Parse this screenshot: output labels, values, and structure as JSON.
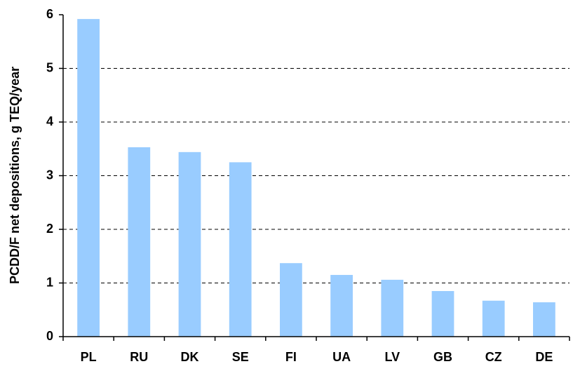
{
  "chart_data": {
    "type": "bar",
    "ylabel": "PCDD/F net depositions, g TEQ/year",
    "categories": [
      "PL",
      "RU",
      "DK",
      "SE",
      "FI",
      "UA",
      "LV",
      "GB",
      "CZ",
      "DE"
    ],
    "values": [
      5.92,
      3.53,
      3.44,
      3.25,
      1.37,
      1.15,
      1.06,
      0.85,
      0.67,
      0.64
    ],
    "color": "#99ccff",
    "ylim": [
      0,
      6
    ],
    "yticks": [
      0,
      1,
      2,
      3,
      4,
      5,
      6
    ],
    "grid": true
  }
}
